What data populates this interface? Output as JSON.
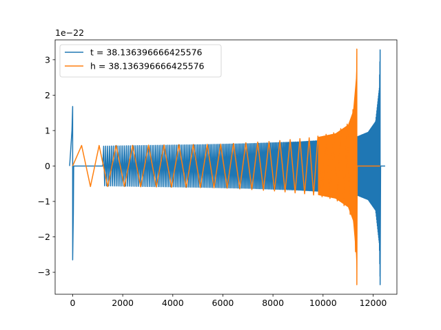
{
  "chart_data": {
    "type": "line",
    "offset_label": "1e−22",
    "xlim": [
      -700,
      12950
    ],
    "ylim": [
      -3.62,
      3.56
    ],
    "xticks": [
      0,
      2000,
      4000,
      6000,
      8000,
      10000,
      12000
    ],
    "xtick_labels": [
      "0",
      "2000",
      "4000",
      "6000",
      "8000",
      "10000",
      "12000"
    ],
    "yticks": [
      -3,
      -2,
      -1,
      0,
      1,
      2,
      3
    ],
    "ytick_labels": [
      "−3",
      "−2",
      "−1",
      "0",
      "1",
      "2",
      "3"
    ],
    "legend_position": "upper-left",
    "grid": false,
    "series": [
      {
        "name": "t = 38.136396666425576",
        "color": "#1f77b4",
        "zero_until": 1200,
        "spike": {
          "x": 0,
          "max": 1.68,
          "min": -2.65
        },
        "merger": {
          "x": 12280,
          "max": 3.27,
          "min": -3.35
        },
        "envelope_x": [
          1200,
          3000,
          5000,
          7000,
          9000,
          10500,
          11350,
          11800,
          12100,
          12250,
          12280
        ],
        "envelope_amp": [
          0.56,
          0.58,
          0.6,
          0.63,
          0.68,
          0.74,
          0.82,
          0.95,
          1.25,
          2.2,
          3.3
        ],
        "envelope_color": "#1f77b4"
      },
      {
        "name": "h = 38.136396666425576",
        "color": "#ff7f0e",
        "spike": {
          "x": 0,
          "max": 0.6,
          "min": -0.58
        },
        "merger": {
          "x": 11350,
          "max": 3.25,
          "min": -3.35
        },
        "envelope_x": [
          0,
          2000,
          4000,
          6000,
          8000,
          9500,
          10500,
          11000,
          11200,
          11320,
          11350
        ],
        "envelope_amp": [
          0.58,
          0.58,
          0.6,
          0.62,
          0.7,
          0.8,
          0.95,
          1.2,
          1.6,
          2.6,
          3.3
        ],
        "tail_zero_until": 12280
      }
    ]
  }
}
